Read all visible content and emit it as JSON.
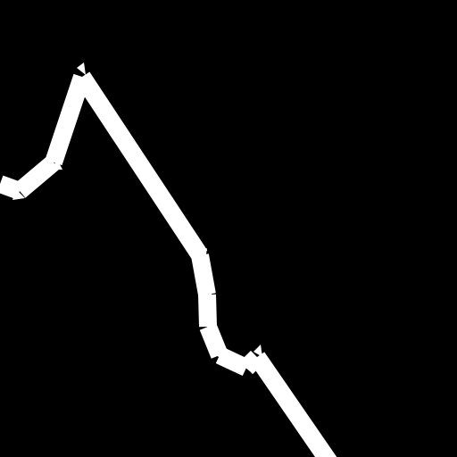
{
  "colors": {
    "background": "#000000",
    "stroke": "#ffffff"
  }
}
